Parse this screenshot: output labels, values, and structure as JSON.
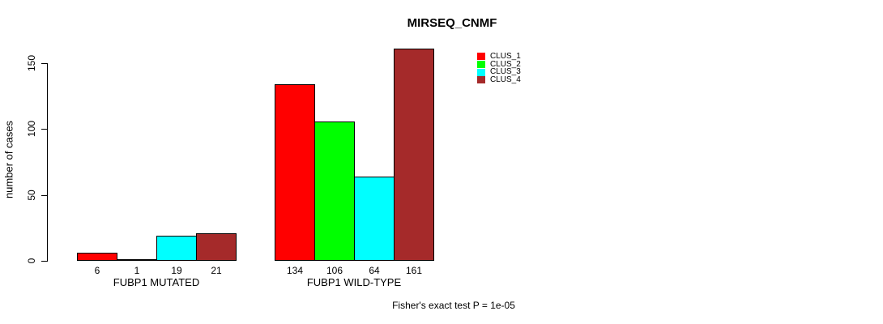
{
  "chart_data": {
    "type": "bar",
    "title": "MIRSEQ_CNMF",
    "ylabel": "number of cases",
    "xlabel": "",
    "ylim": [
      0,
      150
    ],
    "yticks": [
      0,
      50,
      100,
      150
    ],
    "grid": false,
    "legend_position": "top-right-inside",
    "categories": [
      "FUBP1 MUTATED",
      "FUBP1 WILD-TYPE"
    ],
    "series": [
      {
        "name": "CLUS_1",
        "color": "#FF0000",
        "values": [
          6,
          134
        ]
      },
      {
        "name": "CLUS_2",
        "color": "#00FF00",
        "values": [
          1,
          106
        ]
      },
      {
        "name": "CLUS_3",
        "color": "#00FFFF",
        "values": [
          19,
          64
        ]
      },
      {
        "name": "CLUS_4",
        "color": "#A52A2A",
        "values": [
          21,
          161
        ]
      }
    ],
    "bar_value_labels": [
      6,
      1,
      19,
      21,
      134,
      106,
      64,
      161
    ],
    "annotation": "Fisher's exact test P = 1e-05"
  },
  "style_colors": {
    "axis": "#000000",
    "background": "#FFFFFF"
  }
}
